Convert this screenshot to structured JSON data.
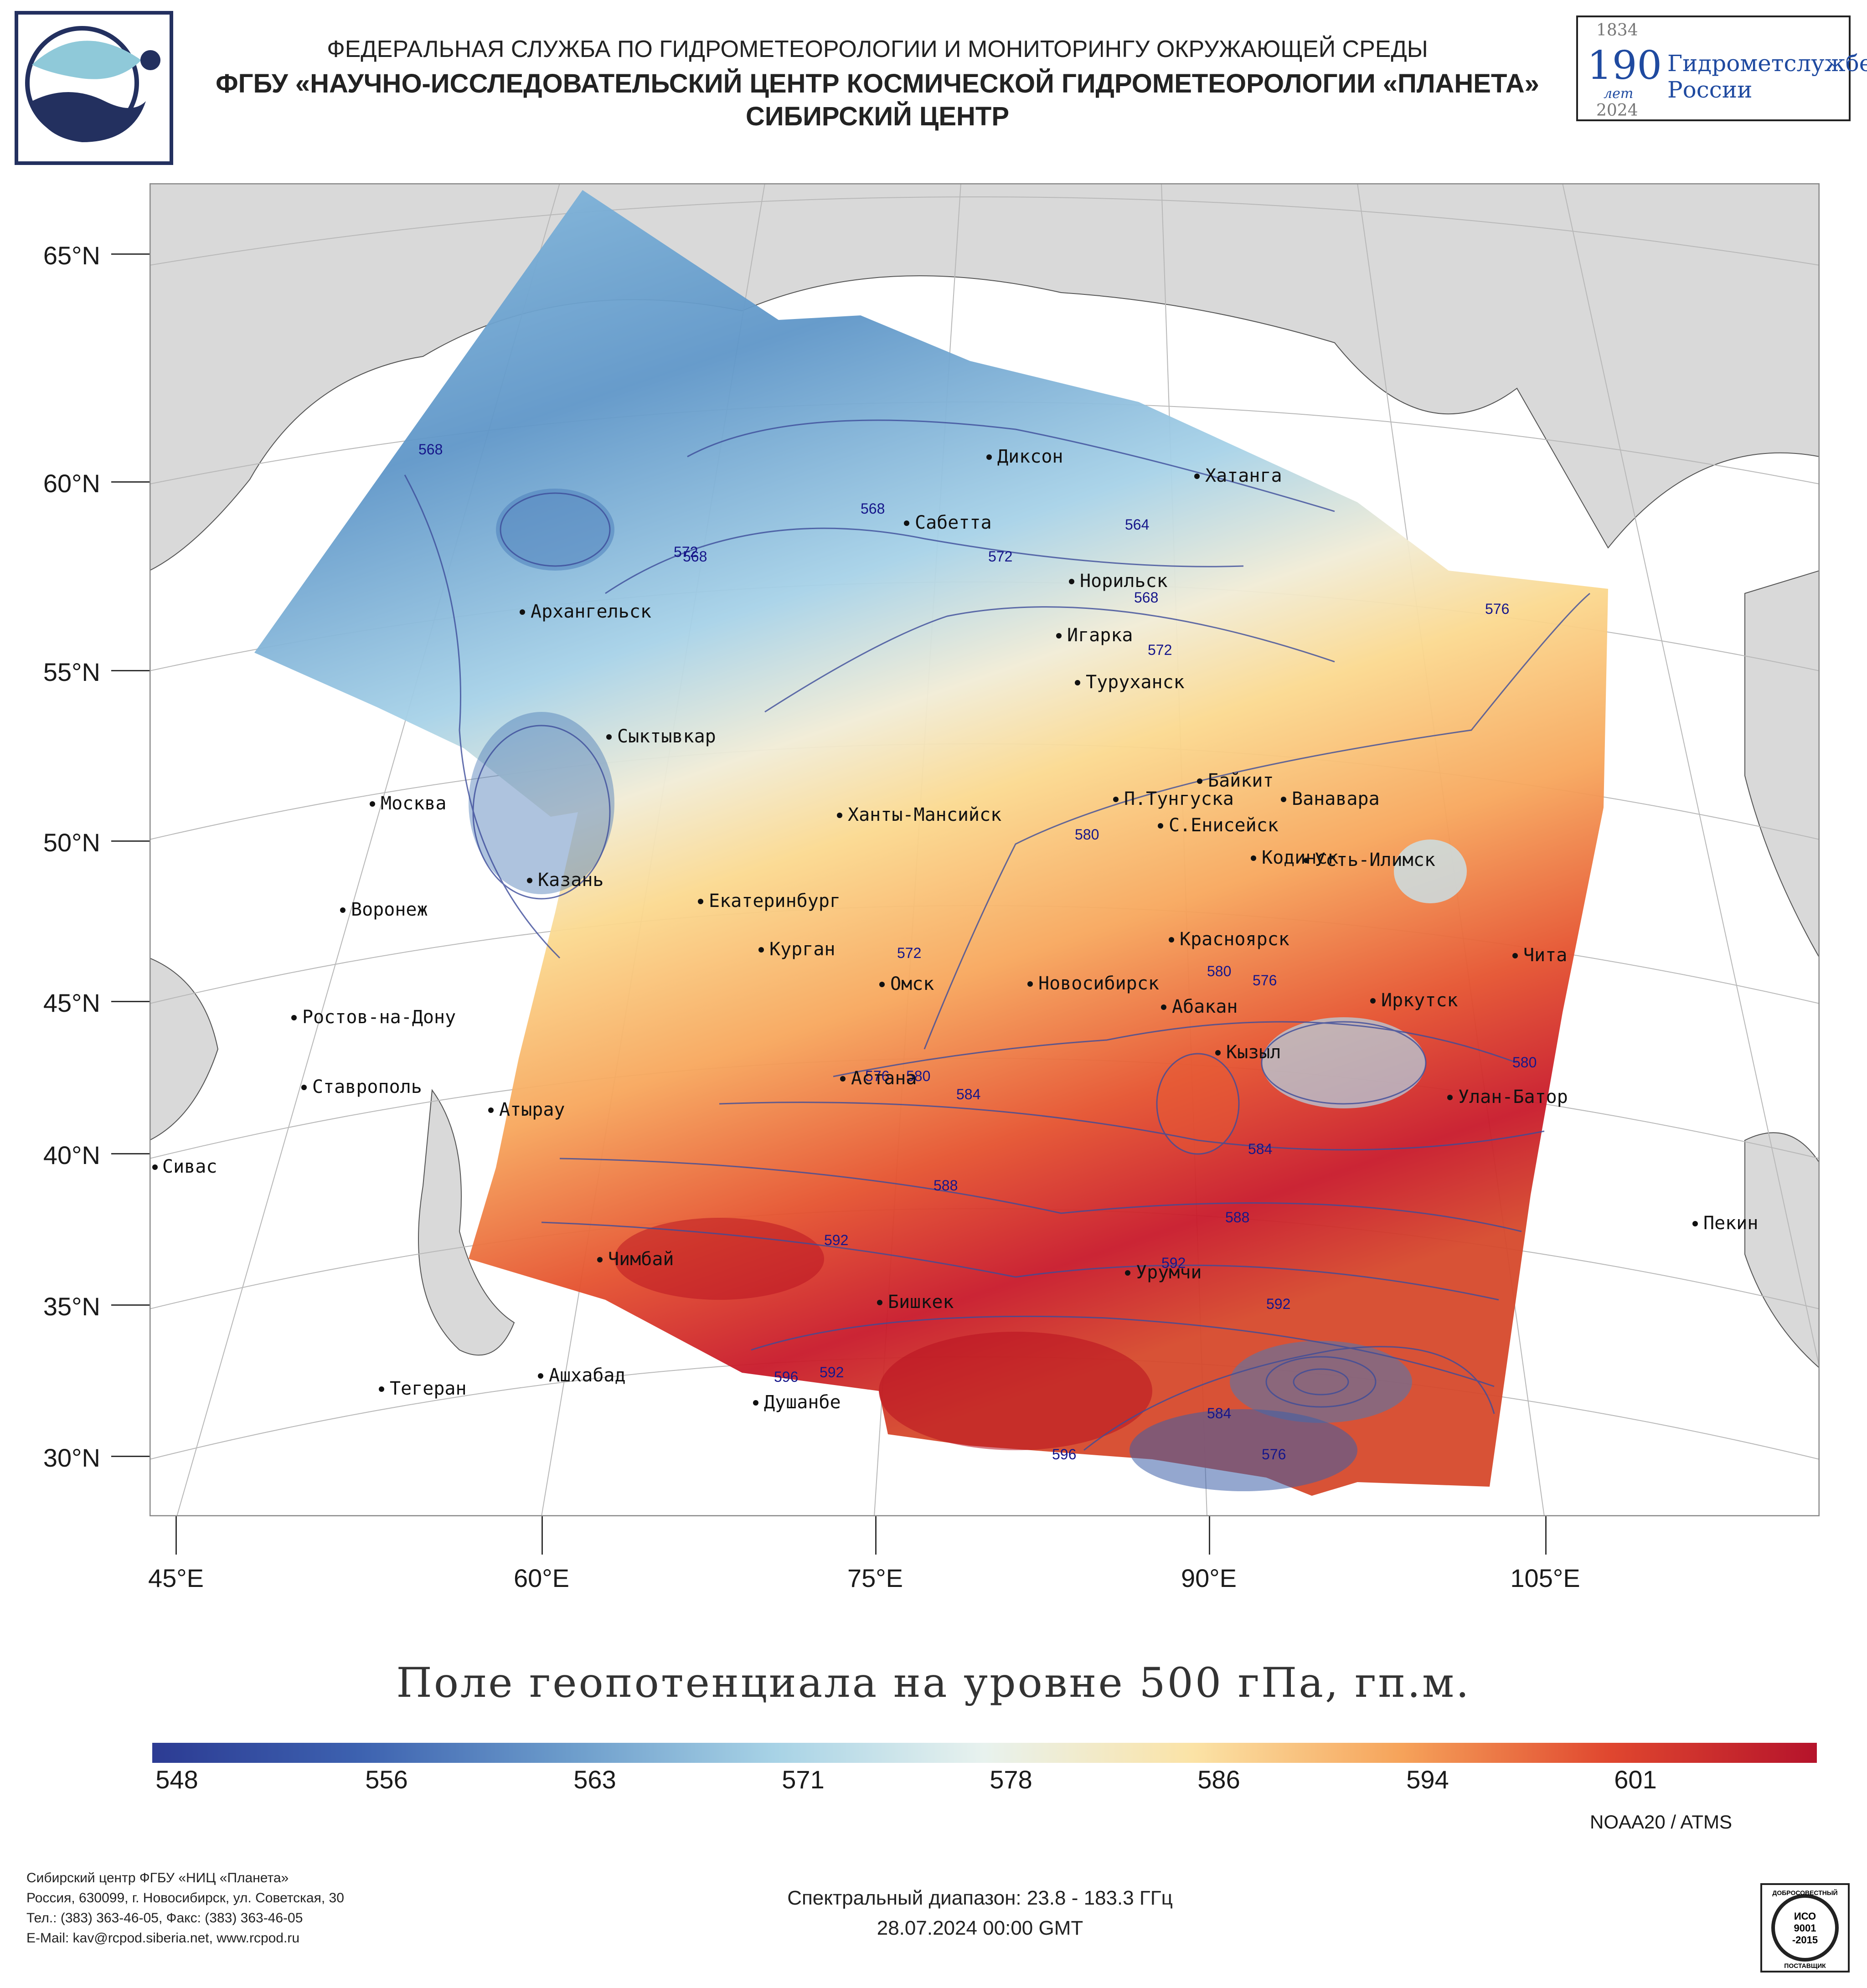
{
  "header": {
    "line1": "ФЕДЕРАЛЬНАЯ СЛУЖБА ПО ГИДРОМЕТЕОРОЛОГИИ И МОНИТОРИНГУ ОКРУЖАЮЩЕЙ СРЕДЫ",
    "line2": "ФГБУ «НАУЧНО-ИССЛЕДОВАТЕЛЬСКИЙ ЦЕНТР КОСМИЧЕСКОЙ ГИДРОМЕТЕОРОЛОГИИ «ПЛАНЕТА»",
    "line3": "СИБИРСКИЙ ЦЕНТР"
  },
  "badge": {
    "year_start": "1834",
    "years": "190",
    "years_word": "лет",
    "year_end": "2024",
    "name_line1": "Гидрометслужбе",
    "name_line2": "России"
  },
  "map": {
    "lat_labels": [
      "65°N",
      "60°N",
      "55°N",
      "50°N",
      "45°N",
      "40°N",
      "35°N",
      "30°N"
    ],
    "lon_labels": [
      "45°E",
      "60°E",
      "75°E",
      "90°E",
      "105°E"
    ],
    "cities": [
      "Диксон",
      "Хатанга",
      "Сабетта",
      "Норильск",
      "Игарка",
      "Туруханск",
      "Архангельск",
      "Сыктывкар",
      "Москва",
      "Казань",
      "Воронеж",
      "Ростов-на-Дону",
      "Ставрополь",
      "Сивас",
      "Екатеринбург",
      "Курган",
      "Ханты-Мансийск",
      "Омск",
      "Новосибирск",
      "Астана",
      "Атырау",
      "Чимбай",
      "Ашхабад",
      "Тегеран",
      "Душанбе",
      "Бишкек",
      "Урумчи",
      "Красноярск",
      "Абакан",
      "Кызыл",
      "Иркутск",
      "Чита",
      "Улан-Батор",
      "Пекин",
      "П.Тунгуска",
      "Байкит",
      "Ванавара",
      "С.Енисейск",
      "Кодинск",
      "Усть-Илимск"
    ],
    "contour_labels": [
      "568",
      "568",
      "568",
      "564",
      "568",
      "572",
      "572",
      "576",
      "576",
      "576",
      "580",
      "580",
      "580",
      "580",
      "584",
      "584",
      "584",
      "588",
      "588",
      "592",
      "592",
      "592",
      "592",
      "596",
      "596",
      "572",
      "576",
      "572"
    ]
  },
  "title": "Поле геопотенциала на уровне 500 гПа, гп.м.",
  "colorbar": {
    "ticks": [
      "548",
      "556",
      "563",
      "571",
      "578",
      "586",
      "594",
      "601"
    ],
    "colors": [
      "#2c3b93",
      "#3d62b0",
      "#6c9ccb",
      "#a8d3e6",
      "#e8f2ee",
      "#fbe3a6",
      "#f6a35a",
      "#e0472f",
      "#b5132b"
    ]
  },
  "satellite": "NOAA20 / ATMS",
  "footer": {
    "org": "Сибирский центр ФГБУ «НИЦ «Планета»",
    "address": "Россия, 630099, г. Новосибирск, ул. Советская, 30",
    "phone": "Тел.: (383) 363-46-05, Факс: (383) 363-46-05",
    "email": "E-Mail: kav@rcpod.siberia.net, www.rcpod.ru",
    "spectral": "Спектральный диапазон: 23.8 - 183.3 ГГц",
    "datetime": "28.07.2024 00:00 GMT",
    "iso_top": "ДОБРОСОВЕСТНЫЙ",
    "iso_mid1": "ИСО",
    "iso_mid2": "9001",
    "iso_mid3": "-2015",
    "iso_bottom": "ПОСТАВЩИК"
  }
}
